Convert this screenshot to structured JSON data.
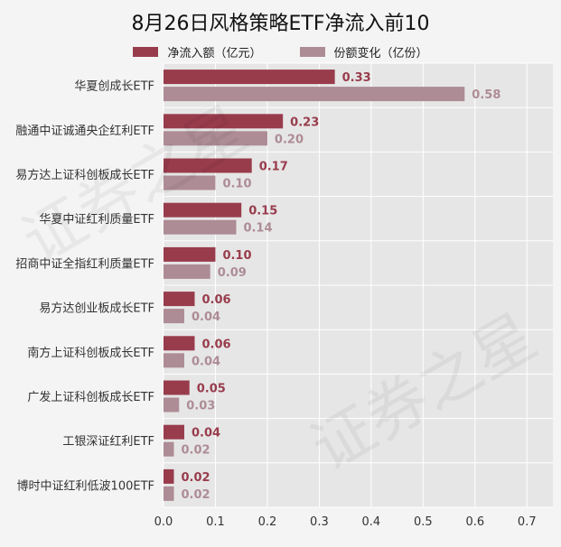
{
  "title": "8月26日风格策略ETF净流入前10",
  "watermark": "证券之星",
  "colors": {
    "series1": "#983c4c",
    "series2": "#ad8c95",
    "plot_bg": "#e6e6e6",
    "page_bg": "#f4f4f4",
    "grid": "#ffffff"
  },
  "chart_data": {
    "type": "bar",
    "orientation": "horizontal",
    "title": "8月26日风格策略ETF净流入前10",
    "categories": [
      "华夏创成长ETF",
      "融通中证诚通央企红利ETF",
      "易方达上证科创板成长ETF",
      "华夏中证红利质量ETF",
      "招商中证全指红利质量ETF",
      "易方达创业板成长ETF",
      "南方上证科创板成长ETF",
      "广发上证科创板成长ETF",
      "工银深证红利ETF",
      "博时中证红利低波100ETF"
    ],
    "series": [
      {
        "name": "净流入额（亿元）",
        "values": [
          0.33,
          0.23,
          0.17,
          0.15,
          0.1,
          0.06,
          0.06,
          0.05,
          0.04,
          0.02
        ]
      },
      {
        "name": "份额变化（亿份）",
        "values": [
          0.58,
          0.2,
          0.1,
          0.14,
          0.09,
          0.04,
          0.04,
          0.03,
          0.02,
          0.02
        ]
      }
    ],
    "xlim": [
      0,
      0.75
    ],
    "xticks": [
      0.0,
      0.1,
      0.2,
      0.3,
      0.4,
      0.5,
      0.6,
      0.7
    ],
    "xtick_labels": [
      "0.0",
      "0.1",
      "0.2",
      "0.3",
      "0.4",
      "0.5",
      "0.6",
      "0.7"
    ],
    "grid": true,
    "legend_position": "top-center",
    "data_labels": true
  }
}
